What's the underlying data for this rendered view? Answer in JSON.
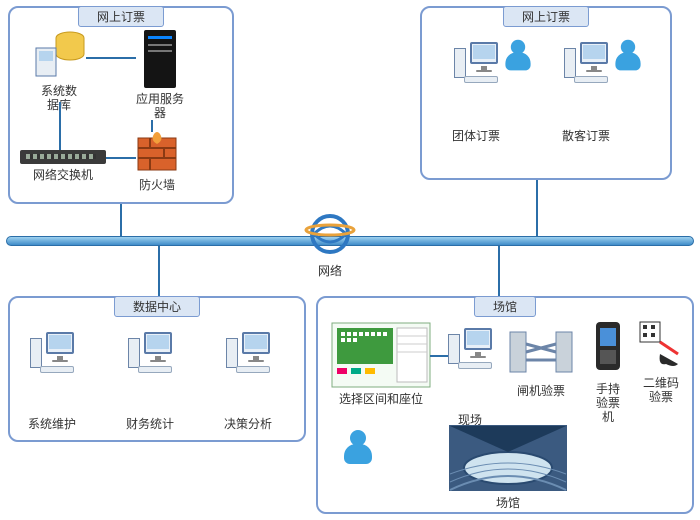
{
  "diagram": {
    "type": "network",
    "background_color": "#ffffff",
    "group_border_color": "#7b9bd1",
    "group_title_bg": "#dbe6f4",
    "network_bar_gradient": [
      "#9ed1ef",
      "#3f8cc9"
    ],
    "connector_color": "#2b6ea8",
    "font_size_label": 12
  },
  "net_label": "网络",
  "groups": {
    "g1": {
      "title": "网上订票",
      "nodes": {
        "db": {
          "label": "系统数\n据库"
        },
        "app": {
          "label": "应用服务\n器"
        },
        "sw": {
          "label": "网络交换机"
        },
        "fw": {
          "label": "防火墙"
        }
      }
    },
    "g2": {
      "title": "网上订票",
      "nodes": {
        "group_book": {
          "label": "团体订票"
        },
        "indiv_book": {
          "label": "散客订票"
        }
      }
    },
    "g3": {
      "title": "数据中心",
      "nodes": {
        "maint": {
          "label": "系统维护"
        },
        "fin": {
          "label": "财务统计"
        },
        "dec": {
          "label": "决策分析"
        }
      }
    },
    "g4": {
      "title": "场馆",
      "nodes": {
        "seat": {
          "label": "选择区间和座位"
        },
        "onsite": {
          "label": "现场\n售票"
        },
        "gate": {
          "label": "闸机验票"
        },
        "hand": {
          "label": "手持\n验票\n机"
        },
        "qr": {
          "label": "二维码\n验票"
        },
        "venue": {
          "label": "场馆"
        }
      }
    }
  }
}
